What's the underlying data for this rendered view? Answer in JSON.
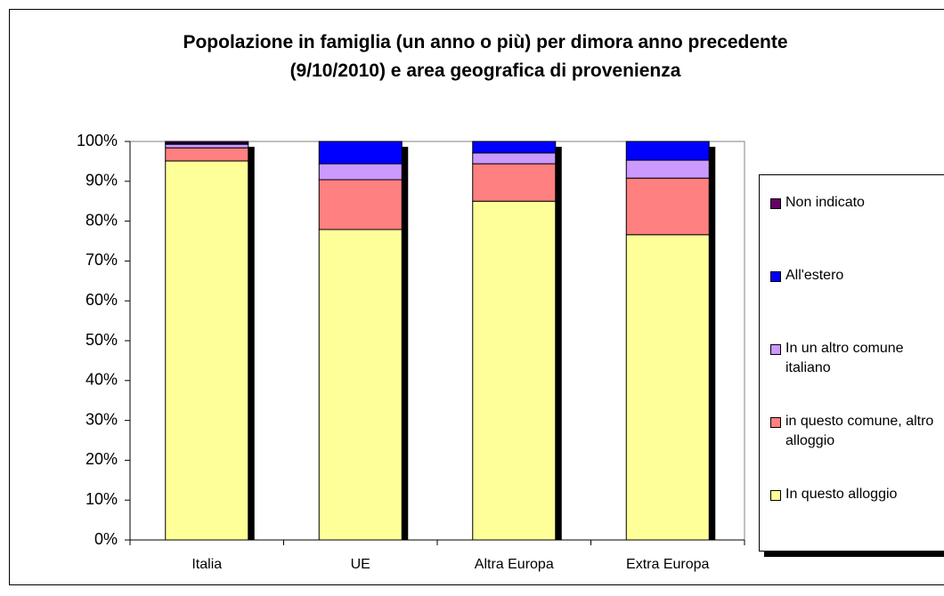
{
  "chart_data": {
    "type": "stacked_bar",
    "title": "Popolazione in famiglia (un anno o più) per dimora anno precedente (9/10/2010) e area geografica di provenienza",
    "categories": [
      "Italia",
      "UE",
      "Altra Europa",
      "Extra Europa"
    ],
    "series": [
      {
        "name": "In questo alloggio",
        "color": "#ffff99",
        "values": [
          95.1,
          77.9,
          85.0,
          76.6
        ]
      },
      {
        "name": "in questo comune, altro alloggio",
        "color": "#ff8080",
        "values": [
          3.3,
          12.5,
          9.4,
          14.2
        ]
      },
      {
        "name": "In un altro comune italiano",
        "color": "#cc99ff",
        "values": [
          0.9,
          4.0,
          2.7,
          4.5
        ]
      },
      {
        "name": "All'estero",
        "color": "#0000ff",
        "values": [
          0.3,
          5.6,
          2.9,
          4.7
        ]
      },
      {
        "name": "Non indicato",
        "color": "#660066",
        "values": [
          0.4,
          0,
          0,
          0
        ]
      }
    ],
    "ylim": [
      0,
      100
    ],
    "yticks": [
      {
        "value": 0,
        "label": "0%"
      },
      {
        "value": 10,
        "label": "10%"
      },
      {
        "value": 20,
        "label": "20%"
      },
      {
        "value": 30,
        "label": "30%"
      },
      {
        "value": 40,
        "label": "40%"
      },
      {
        "value": 50,
        "label": "50%"
      },
      {
        "value": 60,
        "label": "60%"
      },
      {
        "value": 70,
        "label": "70%"
      },
      {
        "value": 80,
        "label": "80%"
      },
      {
        "value": 90,
        "label": "90%"
      },
      {
        "value": 100,
        "label": "100%"
      }
    ],
    "legend": "right"
  }
}
